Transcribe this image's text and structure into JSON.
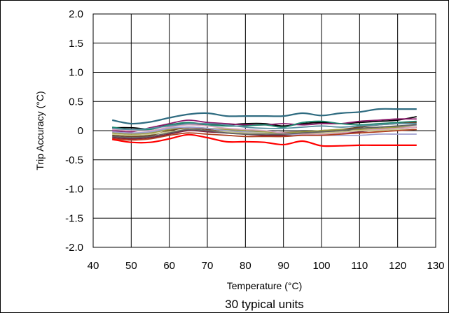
{
  "chart_data": {
    "type": "line",
    "title": "",
    "caption": "30 typical units",
    "xlabel": "Temperature (°C)",
    "ylabel": "Trip Accuracy (°C)",
    "xlim": [
      40,
      130
    ],
    "ylim": [
      -2.0,
      2.0
    ],
    "x_ticks": [
      "40",
      "50",
      "60",
      "70",
      "80",
      "90",
      "100",
      "110",
      "120",
      "130"
    ],
    "y_ticks": [
      "2.0",
      "1.5",
      "1.0",
      "0.5",
      "0",
      "-0.5",
      "-1.0",
      "-1.5",
      "-2.0"
    ],
    "x_tick_values": [
      40,
      50,
      60,
      70,
      80,
      90,
      100,
      110,
      120,
      130
    ],
    "y_tick_values": [
      2.0,
      1.5,
      1.0,
      0.5,
      0,
      -0.5,
      -1.0,
      -1.5,
      -2.0
    ],
    "grid": true,
    "legend": "none",
    "x": [
      45,
      50,
      55,
      60,
      65,
      70,
      75,
      80,
      85,
      90,
      95,
      100,
      105,
      110,
      115,
      120,
      125
    ],
    "series": [
      {
        "color": "#2e6b80",
        "values": [
          0.18,
          0.12,
          0.15,
          0.22,
          0.28,
          0.3,
          0.25,
          0.25,
          0.25,
          0.25,
          0.3,
          0.26,
          0.3,
          0.32,
          0.37,
          0.37,
          0.37
        ]
      },
      {
        "color": "#ff0000",
        "values": [
          -0.15,
          -0.2,
          -0.2,
          -0.14,
          -0.07,
          -0.12,
          -0.19,
          -0.19,
          -0.2,
          -0.24,
          -0.18,
          -0.26,
          -0.26,
          -0.25,
          -0.25,
          -0.25,
          -0.25
        ]
      },
      {
        "color": "#000000",
        "values": [
          0.05,
          0.05,
          0.03,
          0.1,
          0.12,
          0.1,
          0.1,
          0.12,
          0.12,
          0.08,
          0.12,
          0.14,
          0.12,
          0.14,
          0.16,
          0.18,
          0.24
        ]
      },
      {
        "color": "#8b1a6b",
        "values": [
          0.0,
          -0.02,
          0.05,
          0.12,
          0.18,
          0.14,
          0.12,
          0.1,
          0.1,
          0.12,
          0.1,
          0.12,
          0.12,
          0.16,
          0.18,
          0.2,
          0.2
        ]
      },
      {
        "color": "#1f8a70",
        "values": [
          0.06,
          0.02,
          0.02,
          0.1,
          0.14,
          0.1,
          0.08,
          0.08,
          0.1,
          0.06,
          0.14,
          0.16,
          0.12,
          0.1,
          0.12,
          0.14,
          0.16
        ]
      },
      {
        "color": "#6b4226",
        "values": [
          -0.08,
          -0.1,
          -0.08,
          0.0,
          0.05,
          0.02,
          -0.02,
          -0.02,
          -0.03,
          -0.03,
          -0.02,
          0.0,
          0.02,
          0.06,
          0.1,
          0.12,
          0.14
        ]
      },
      {
        "color": "#9a9a40",
        "values": [
          -0.04,
          -0.06,
          -0.04,
          0.02,
          0.06,
          0.04,
          0.02,
          0.0,
          -0.02,
          -0.04,
          -0.02,
          0.0,
          0.02,
          0.02,
          0.04,
          0.06,
          0.06
        ]
      },
      {
        "color": "#7a1f3d",
        "values": [
          -0.12,
          -0.14,
          -0.12,
          -0.06,
          0.0,
          -0.02,
          -0.04,
          -0.06,
          -0.08,
          -0.08,
          -0.06,
          -0.06,
          -0.04,
          -0.02,
          0.02,
          0.04,
          0.06
        ]
      },
      {
        "color": "#d9a6c0",
        "values": [
          0.02,
          0.0,
          0.0,
          0.06,
          0.1,
          0.08,
          0.04,
          0.02,
          0.0,
          -0.04,
          -0.06,
          -0.06,
          -0.04,
          0.0,
          0.02,
          0.04,
          0.06
        ]
      },
      {
        "color": "#a0a0d0",
        "values": [
          -0.02,
          -0.04,
          -0.02,
          0.04,
          0.06,
          0.04,
          0.0,
          -0.02,
          -0.04,
          -0.06,
          -0.08,
          -0.08,
          -0.08,
          -0.08,
          -0.06,
          -0.06,
          -0.06
        ]
      },
      {
        "color": "#5a8fa0",
        "values": [
          0.04,
          0.02,
          0.04,
          0.08,
          0.12,
          0.12,
          0.1,
          0.06,
          0.04,
          0.04,
          0.06,
          0.08,
          0.06,
          0.08,
          0.1,
          0.12,
          0.12
        ]
      },
      {
        "color": "#c8c890",
        "values": [
          -0.06,
          -0.08,
          -0.06,
          -0.02,
          0.02,
          0.0,
          -0.02,
          -0.04,
          -0.04,
          -0.06,
          -0.04,
          -0.04,
          -0.02,
          0.0,
          0.0,
          0.02,
          0.02
        ]
      },
      {
        "color": "#606060",
        "values": [
          -0.1,
          -0.12,
          -0.1,
          -0.04,
          0.02,
          0.0,
          -0.04,
          -0.06,
          -0.06,
          -0.06,
          -0.04,
          -0.02,
          0.0,
          0.04,
          0.06,
          0.08,
          0.1
        ]
      },
      {
        "color": "#b04020",
        "values": [
          -0.14,
          -0.16,
          -0.14,
          -0.08,
          -0.04,
          -0.06,
          -0.08,
          -0.1,
          -0.1,
          -0.1,
          -0.08,
          -0.08,
          -0.06,
          -0.04,
          -0.02,
          0.0,
          0.02
        ]
      }
    ]
  }
}
